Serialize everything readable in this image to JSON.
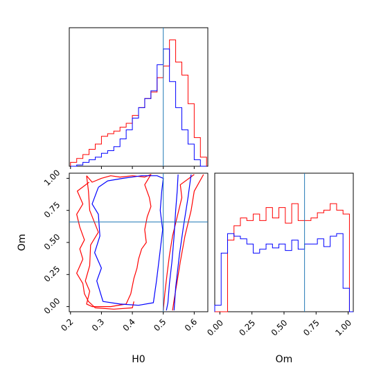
{
  "chart_data": [
    {
      "type": "histogram",
      "panel": "H0 marginal",
      "xlim": [
        0.196,
        0.644
      ],
      "bin_edges": [
        0.2,
        0.22,
        0.24,
        0.26,
        0.28,
        0.3,
        0.32,
        0.34,
        0.36,
        0.38,
        0.4,
        0.42,
        0.44,
        0.46,
        0.48,
        0.5,
        0.52,
        0.54,
        0.56,
        0.58,
        0.6,
        0.62,
        0.64
      ],
      "truth": 0.5,
      "colors": {
        "series_red": "#ff0000",
        "series_blue": "#0000ff",
        "truth_line": "#1f77b4"
      },
      "series": [
        {
          "color": "#ff0000",
          "values": [
            0.03,
            0.06,
            0.09,
            0.13,
            0.17,
            0.23,
            0.25,
            0.27,
            0.3,
            0.33,
            0.39,
            0.45,
            0.52,
            0.57,
            0.68,
            0.77,
            0.97,
            0.8,
            0.7,
            0.48,
            0.22,
            0.07
          ]
        },
        {
          "color": "#0000ff",
          "values": [
            0.0,
            0.01,
            0.03,
            0.05,
            0.07,
            0.1,
            0.12,
            0.15,
            0.21,
            0.28,
            0.37,
            0.45,
            0.52,
            0.58,
            0.78,
            0.9,
            0.65,
            0.45,
            0.28,
            0.17,
            0.05,
            0.0
          ]
        }
      ]
    },
    {
      "type": "contour",
      "panel": "H0 vs Om joint",
      "xlabel": "H0",
      "ylabel": "Om",
      "xlim": [
        0.196,
        0.644
      ],
      "ylim": [
        -0.04,
        1.04
      ],
      "x_ticks": [
        "0.2",
        "0.3",
        "0.4",
        "0.5",
        "0.6"
      ],
      "y_ticks": [
        "0.00",
        "0.25",
        "0.50",
        "0.75",
        "1.00"
      ],
      "truth": {
        "H0": 0.5,
        "Om": 0.66
      },
      "series": [
        {
          "color": "#ff0000",
          "levels": [
            [
              [
                0.252,
                1.02
              ],
              [
                0.27,
                0.97
              ],
              [
                0.3,
                1.0
              ],
              [
                0.33,
                1.02
              ],
              [
                0.36,
                1.01
              ],
              [
                0.4,
                1.02
              ],
              [
                0.44,
                1.01
              ],
              [
                0.46,
                1.03
              ],
              [
                0.44,
                0.95
              ],
              [
                0.455,
                0.85
              ],
              [
                0.46,
                0.78
              ],
              [
                0.448,
                0.7
              ],
              [
                0.44,
                0.6
              ],
              [
                0.445,
                0.5
              ],
              [
                0.43,
                0.45
              ],
              [
                0.42,
                0.37
              ],
              [
                0.415,
                0.3
              ],
              [
                0.405,
                0.22
              ],
              [
                0.395,
                0.1
              ],
              [
                0.38,
                0.02
              ],
              [
                0.33,
                0.0
              ],
              [
                0.27,
                0.0
              ],
              [
                0.252,
                0.02
              ],
              [
                0.262,
                0.12
              ],
              [
                0.248,
                0.2
              ],
              [
                0.262,
                0.32
              ],
              [
                0.265,
                0.48
              ],
              [
                0.29,
                0.58
              ],
              [
                0.262,
                0.75
              ],
              [
                0.258,
                0.9
              ],
              [
                0.252,
                1.02
              ]
            ],
            [
              [
                0.26,
                0.97
              ],
              [
                0.222,
                0.9
              ],
              [
                0.24,
                0.8
              ],
              [
                0.22,
                0.72
              ],
              [
                0.23,
                0.62
              ],
              [
                0.245,
                0.52
              ],
              [
                0.23,
                0.45
              ],
              [
                0.24,
                0.37
              ],
              [
                0.22,
                0.26
              ],
              [
                0.24,
                0.18
              ],
              [
                0.245,
                0.1
              ],
              [
                0.258,
                0.04
              ],
              [
                0.28,
                -0.01
              ],
              [
                0.34,
                -0.02
              ],
              [
                0.4,
                -0.01
              ],
              [
                0.405,
                0.04
              ]
            ],
            [
              [
                0.6,
                1.03
              ],
              [
                0.555,
                0.95
              ],
              [
                0.56,
                0.85
              ],
              [
                0.545,
                0.7
              ],
              [
                0.53,
                0.55
              ],
              [
                0.52,
                0.4
              ],
              [
                0.512,
                0.25
              ],
              [
                0.505,
                0.1
              ],
              [
                0.5,
                -0.03
              ]
            ],
            [
              [
                0.63,
                1.03
              ],
              [
                0.6,
                0.9
              ],
              [
                0.59,
                0.75
              ],
              [
                0.57,
                0.55
              ],
              [
                0.555,
                0.35
              ],
              [
                0.545,
                0.2
              ],
              [
                0.535,
                0.05
              ],
              [
                0.53,
                -0.03
              ]
            ]
          ]
        },
        {
          "color": "#0000ff",
          "levels": [
            [
              [
                0.29,
                0.93
              ],
              [
                0.32,
                0.98
              ],
              [
                0.37,
                1.0
              ],
              [
                0.43,
                1.02
              ],
              [
                0.48,
                1.02
              ],
              [
                0.5,
                1.0
              ],
              [
                0.495,
                0.9
              ],
              [
                0.49,
                0.75
              ],
              [
                0.498,
                0.6
              ],
              [
                0.488,
                0.4
              ],
              [
                0.478,
                0.2
              ],
              [
                0.468,
                0.03
              ],
              [
                0.42,
                0.01
              ],
              [
                0.36,
                0.02
              ],
              [
                0.305,
                0.04
              ],
              [
                0.285,
                0.2
              ],
              [
                0.3,
                0.3
              ],
              [
                0.278,
                0.42
              ],
              [
                0.295,
                0.55
              ],
              [
                0.29,
                0.72
              ],
              [
                0.27,
                0.8
              ],
              [
                0.29,
                0.93
              ]
            ],
            [
              [
                0.548,
                1.03
              ],
              [
                0.545,
                0.9
              ],
              [
                0.54,
                0.75
              ],
              [
                0.535,
                0.55
              ],
              [
                0.528,
                0.35
              ],
              [
                0.52,
                0.18
              ],
              [
                0.515,
                0.03
              ],
              [
                0.51,
                -0.03
              ]
            ],
            [
              [
                0.59,
                1.03
              ],
              [
                0.58,
                0.85
              ],
              [
                0.565,
                0.62
              ],
              [
                0.552,
                0.4
              ],
              [
                0.54,
                0.15
              ],
              [
                0.535,
                -0.03
              ]
            ]
          ]
        }
      ]
    },
    {
      "type": "histogram",
      "panel": "Om marginal",
      "xlabel": "Om",
      "xlim": [
        -0.04,
        1.04
      ],
      "x_ticks": [
        "0.00",
        "0.25",
        "0.50",
        "0.75",
        "1.00"
      ],
      "bin_edges": [
        -0.04,
        0.01,
        0.06,
        0.11,
        0.16,
        0.21,
        0.26,
        0.31,
        0.36,
        0.41,
        0.46,
        0.51,
        0.56,
        0.61,
        0.66,
        0.71,
        0.76,
        0.81,
        0.86,
        0.91,
        0.96,
        1.01,
        1.04
      ],
      "truth": 0.66,
      "series": [
        {
          "color": "#ff0000",
          "values": [
            0.0,
            0.0,
            0.55,
            0.66,
            0.72,
            0.7,
            0.75,
            0.7,
            0.8,
            0.72,
            0.8,
            0.68,
            0.83,
            0.7,
            0.7,
            0.72,
            0.76,
            0.78,
            0.83,
            0.78,
            0.75,
            0.0
          ]
        },
        {
          "color": "#0000ff",
          "values": [
            0.05,
            0.45,
            0.6,
            0.58,
            0.56,
            0.52,
            0.45,
            0.48,
            0.52,
            0.49,
            0.52,
            0.47,
            0.55,
            0.48,
            0.52,
            0.52,
            0.56,
            0.5,
            0.58,
            0.6,
            0.18,
            0.0
          ]
        }
      ]
    }
  ]
}
